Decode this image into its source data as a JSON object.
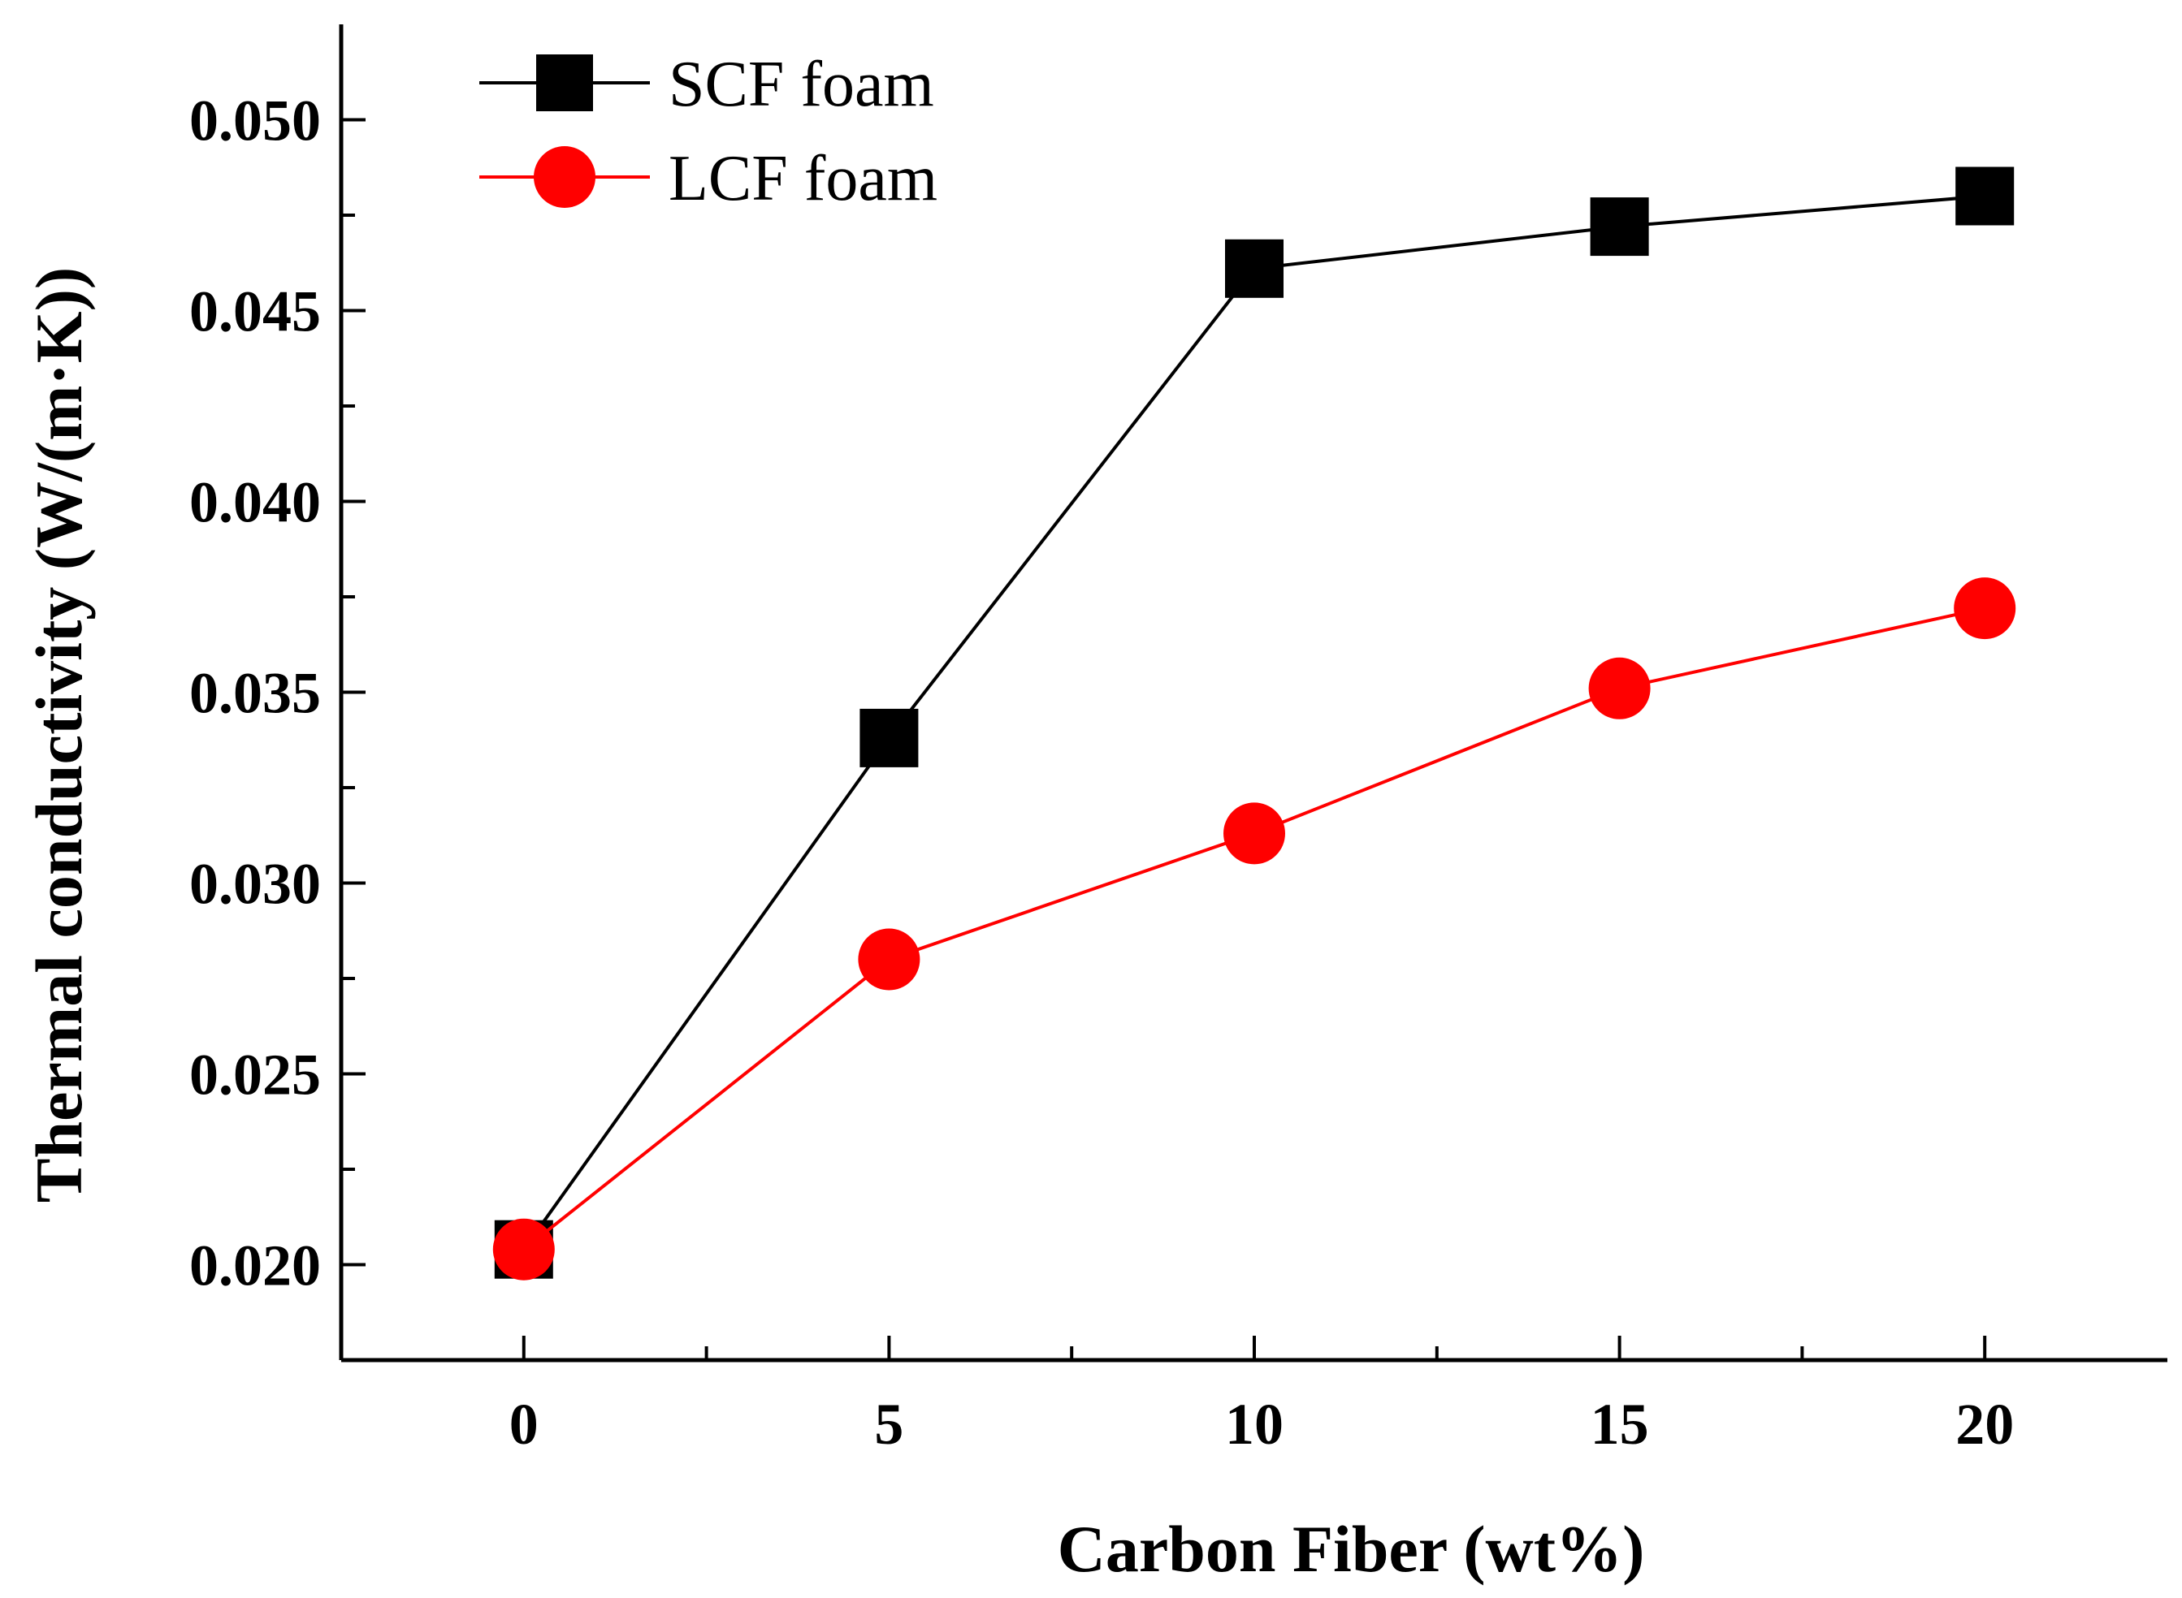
{
  "chart_data": {
    "type": "line",
    "title": "",
    "xlabel": "Carbon Fiber (wt%)",
    "ylabel": "Thermal conductivity (W/(m·K))",
    "x": [
      0,
      5,
      10,
      15,
      20
    ],
    "xlim": [
      -2.5,
      22.5
    ],
    "ylim": [
      0.0175,
      0.0525
    ],
    "xticks": [
      0,
      5,
      10,
      15,
      20
    ],
    "xtick_labels": [
      "0",
      "5",
      "10",
      "15",
      "20"
    ],
    "yticks": [
      0.02,
      0.025,
      0.03,
      0.035,
      0.04,
      0.045,
      0.05
    ],
    "ytick_labels": [
      "0.020",
      "0.025",
      "0.030",
      "0.035",
      "0.040",
      "0.045",
      "0.050"
    ],
    "grid": false,
    "legend_position": "top-left",
    "series": [
      {
        "name": "SCF foam",
        "marker": "square",
        "color": "#000000",
        "values": [
          0.0204,
          0.0338,
          0.0461,
          0.0472,
          0.048
        ]
      },
      {
        "name": "LCF foam",
        "marker": "circle",
        "color": "#ff0000",
        "values": [
          0.0204,
          0.028,
          0.0313,
          0.0351,
          0.0372
        ]
      }
    ]
  }
}
